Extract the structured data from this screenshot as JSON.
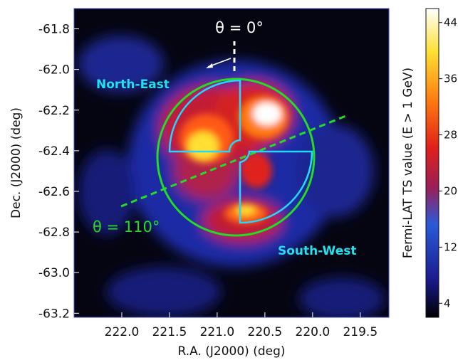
{
  "chart_data": {
    "type": "heatmap",
    "xlabel": "R.A. (J2000) (deg)",
    "ylabel": "Dec. (J2000) (deg)",
    "colorbar_label": "Fermi-LAT TS value (E > 1 GeV)",
    "x_ticks": [
      222.0,
      221.5,
      221.0,
      220.5,
      220.0,
      219.5
    ],
    "y_ticks": [
      -61.8,
      -62.0,
      -62.2,
      -62.4,
      -62.6,
      -62.8,
      -63.0,
      -63.2
    ],
    "xlim": [
      222.5,
      219.2
    ],
    "ylim": [
      -63.22,
      -61.7
    ],
    "colorbar_ticks": [
      4,
      12,
      20,
      28,
      36,
      44
    ],
    "colorbar_range": [
      2,
      46
    ],
    "colormap": [
      "#000000",
      "#1a1a8c",
      "#2a5ad9",
      "#9a1f58",
      "#e0201a",
      "#ff7a10",
      "#ffe033",
      "#ffffff"
    ],
    "regions": {
      "circle_color": "#22dd22",
      "wedge_color": "#22d8ff",
      "line_color": "#22dd22",
      "center": [
        220.75,
        -62.43
      ],
      "radius_deg": 0.39
    },
    "annotations": {
      "theta0": "θ = 0°",
      "theta110": "θ = 110°",
      "north_east": "North-East",
      "south_west": "South-West"
    }
  }
}
